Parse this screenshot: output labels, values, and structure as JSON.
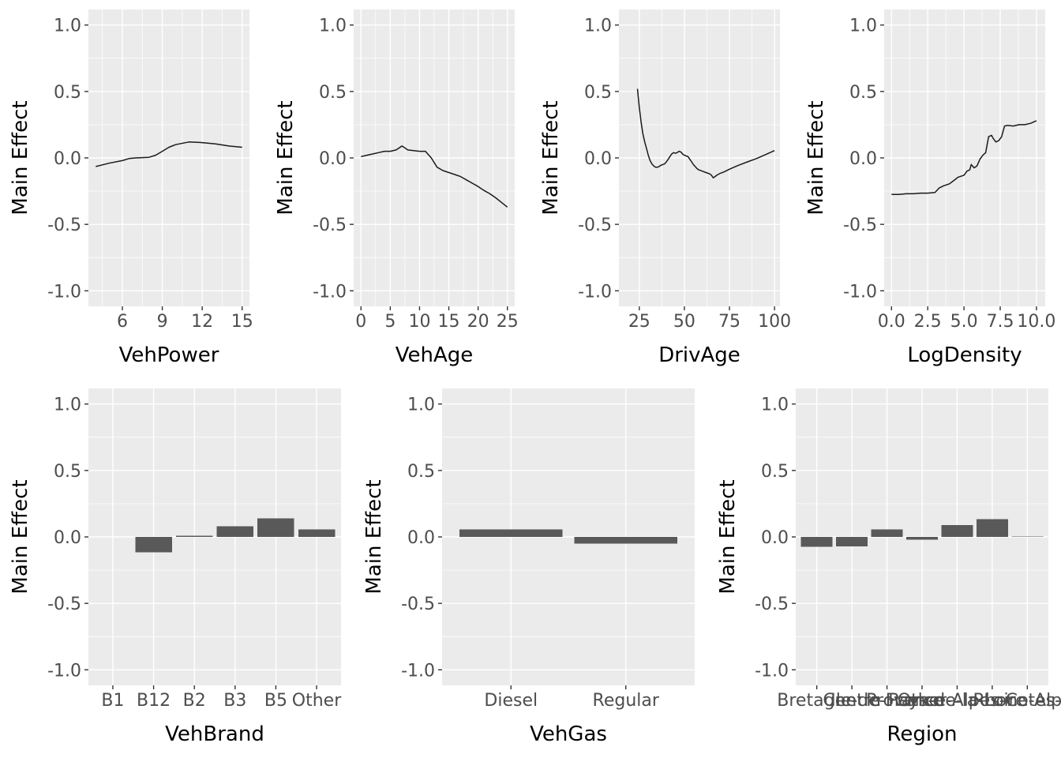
{
  "figure": {
    "ylabel": "Main Effect",
    "rows": 2
  },
  "theme": {
    "panel_bg": "#EBEBEB",
    "grid_major": "#FFFFFF",
    "grid_minor": "#F5F5F5",
    "tick_mark": "#333333",
    "tick_label_color": "#4D4D4D",
    "axis_title_color": "#000000",
    "line_color": "#1A1A1A",
    "bar_fill": "#595959",
    "background": "#FFFFFF"
  },
  "yaxis": {
    "tick_values": [
      1.0,
      0.5,
      0.0,
      -0.5,
      -1.0
    ],
    "tick_labels": [
      "1.0",
      "0.5",
      "0.0",
      "-0.5",
      "-1.0"
    ],
    "minor_values": [
      0.75,
      0.25,
      -0.25,
      -0.75
    ],
    "domain": [
      -1.117,
      1.117
    ],
    "label": "Main Effect"
  },
  "chart_data": [
    {
      "type": "line",
      "title": "",
      "xlabel": "VehPower",
      "ylabel": "Main Effect",
      "ylim": [
        -1.1,
        1.1
      ],
      "xdomain": [
        3.45,
        15.55
      ],
      "xticks": [
        6,
        9,
        12,
        15
      ],
      "xticklabels": [
        "6",
        "9",
        "12",
        "15"
      ],
      "xminor": [
        4.5,
        7.5,
        10.5,
        13.5
      ],
      "x": [
        4,
        5,
        6,
        6.5,
        7,
        8,
        8.5,
        9,
        9.5,
        10,
        11,
        12,
        13,
        14,
        15
      ],
      "y": [
        -0.065,
        -0.04,
        -0.02,
        -0.005,
        0.0,
        0.005,
        0.02,
        0.05,
        0.08,
        0.1,
        0.12,
        0.115,
        0.105,
        0.09,
        0.08
      ]
    },
    {
      "type": "line",
      "title": "",
      "xlabel": "VehAge",
      "ylabel": "Main Effect",
      "ylim": [
        -1.1,
        1.1
      ],
      "xdomain": [
        -1.25,
        26.25
      ],
      "xticks": [
        0,
        5,
        10,
        15,
        20,
        25
      ],
      "xticklabels": [
        "0",
        "5",
        "10",
        "15",
        "20",
        "25"
      ],
      "xminor": [
        2.5,
        7.5,
        12.5,
        17.5,
        22.5
      ],
      "x": [
        0,
        1,
        2,
        3,
        4,
        5,
        6,
        7,
        8,
        9,
        10,
        11,
        12,
        13,
        14,
        15,
        16,
        17,
        18,
        19,
        20,
        21,
        22,
        23,
        24,
        25
      ],
      "y": [
        0.01,
        0.02,
        0.03,
        0.04,
        0.05,
        0.05,
        0.06,
        0.09,
        0.06,
        0.055,
        0.05,
        0.05,
        0.0,
        -0.07,
        -0.095,
        -0.11,
        -0.125,
        -0.14,
        -0.165,
        -0.19,
        -0.215,
        -0.245,
        -0.27,
        -0.3,
        -0.335,
        -0.37
      ]
    },
    {
      "type": "line",
      "title": "",
      "xlabel": "DrivAge",
      "ylabel": "Main Effect",
      "ylim": [
        -1.1,
        1.1
      ],
      "xdomain": [
        13.7,
        103.0
      ],
      "xticks": [
        25,
        50,
        75,
        100
      ],
      "xticklabels": [
        "25",
        "50",
        "75",
        "100"
      ],
      "xminor": [
        37.5,
        62.5,
        87.5
      ],
      "x": [
        24,
        25,
        26,
        27,
        28,
        29,
        30,
        31,
        32,
        33,
        34,
        35,
        36,
        37,
        38,
        39,
        40,
        41,
        42,
        43,
        44,
        45,
        46,
        47,
        48,
        49,
        50,
        51,
        52,
        53,
        54,
        55,
        56,
        57,
        58,
        60,
        62,
        64,
        65,
        66,
        67,
        68,
        70,
        72,
        75,
        80,
        85,
        90,
        95,
        100
      ],
      "y": [
        0.52,
        0.38,
        0.27,
        0.18,
        0.12,
        0.07,
        0.02,
        -0.02,
        -0.045,
        -0.06,
        -0.07,
        -0.07,
        -0.065,
        -0.055,
        -0.05,
        -0.045,
        -0.03,
        -0.01,
        0.01,
        0.03,
        0.04,
        0.035,
        0.04,
        0.05,
        0.045,
        0.03,
        0.02,
        0.015,
        0.01,
        -0.01,
        -0.03,
        -0.05,
        -0.065,
        -0.08,
        -0.09,
        -0.1,
        -0.11,
        -0.12,
        -0.13,
        -0.15,
        -0.14,
        -0.13,
        -0.115,
        -0.105,
        -0.085,
        -0.055,
        -0.03,
        -0.005,
        0.025,
        0.055
      ]
    },
    {
      "type": "line",
      "title": "",
      "xlabel": "LogDensity",
      "ylabel": "Main Effect",
      "ylim": [
        -1.1,
        1.1
      ],
      "xdomain": [
        -0.505,
        10.605
      ],
      "xticks": [
        0.0,
        2.5,
        5.0,
        7.5,
        10.0
      ],
      "xticklabels": [
        "0.0",
        "2.5",
        "5.0",
        "7.5",
        "10.0"
      ],
      "xminor": [
        1.25,
        3.75,
        6.25,
        8.75
      ],
      "x": [
        0,
        0.5,
        1,
        1.5,
        2,
        2.5,
        3,
        3.3,
        3.6,
        4,
        4.3,
        4.6,
        5,
        5.2,
        5.4,
        5.5,
        5.7,
        5.9,
        6.1,
        6.3,
        6.5,
        6.7,
        6.9,
        7.0,
        7.2,
        7.4,
        7.6,
        7.8,
        8.0,
        8.4,
        8.8,
        9.2,
        9.6,
        10.0
      ],
      "y": [
        -0.275,
        -0.275,
        -0.27,
        -0.27,
        -0.265,
        -0.265,
        -0.26,
        -0.225,
        -0.21,
        -0.195,
        -0.17,
        -0.145,
        -0.13,
        -0.1,
        -0.09,
        -0.05,
        -0.075,
        -0.06,
        -0.01,
        0.02,
        0.04,
        0.16,
        0.17,
        0.15,
        0.12,
        0.13,
        0.16,
        0.24,
        0.245,
        0.24,
        0.25,
        0.25,
        0.26,
        0.28
      ]
    },
    {
      "type": "bar",
      "title": "",
      "xlabel": "VehBrand",
      "ylabel": "Main Effect",
      "ylim": [
        -1.1,
        1.1
      ],
      "categories": [
        "B1",
        "B12",
        "B2",
        "B3",
        "B5",
        "Other"
      ],
      "values": [
        0.0,
        -0.115,
        0.01,
        0.08,
        0.14,
        0.055
      ]
    },
    {
      "type": "bar",
      "title": "",
      "xlabel": "VehGas",
      "ylabel": "Main Effect",
      "ylim": [
        -1.1,
        1.1
      ],
      "categories": [
        "Diesel",
        "Regular"
      ],
      "values": [
        0.055,
        -0.05
      ]
    },
    {
      "type": "bar",
      "title": "",
      "xlabel": "Region",
      "ylabel": "Main Effect",
      "ylim": [
        -1.1,
        1.1
      ],
      "categories": [
        "Bretagne",
        "Centre",
        "Ile-de-France",
        "Other",
        "Pays-de-la-Loire",
        "Provence-Alpes-Cotes-D'Azur",
        "Rhone-Alpes"
      ],
      "values": [
        -0.075,
        -0.07,
        0.055,
        -0.02,
        0.09,
        0.135,
        0.003
      ]
    }
  ]
}
